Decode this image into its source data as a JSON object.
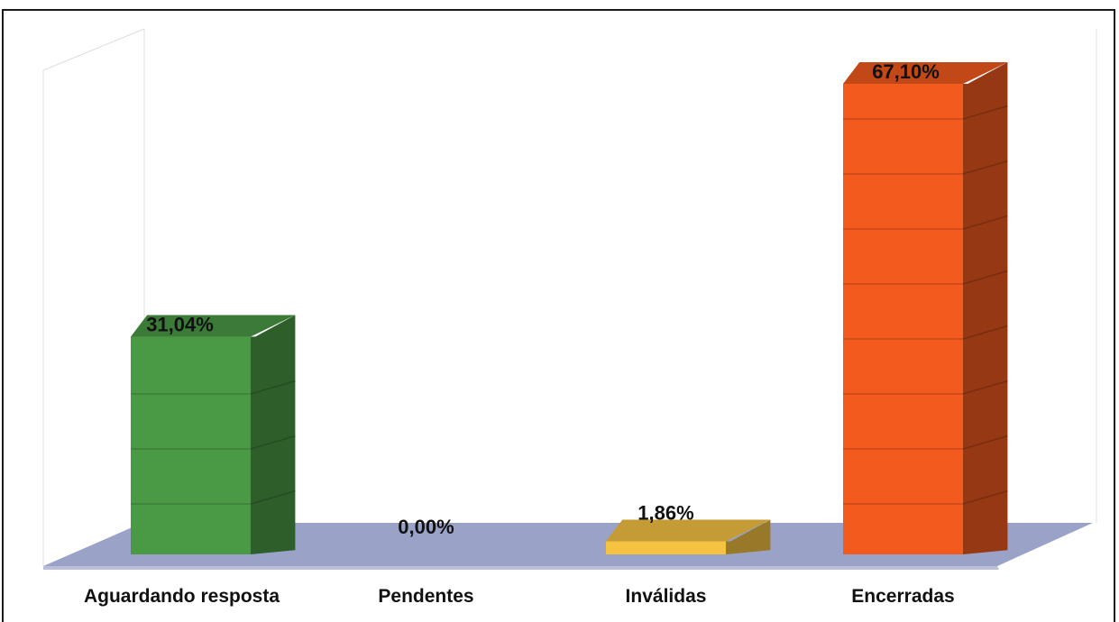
{
  "chart_data": {
    "type": "bar",
    "categories": [
      "Aguardando resposta",
      "Pendentes",
      "Inválidas",
      "Encerradas"
    ],
    "values": [
      31.04,
      0.0,
      1.86,
      67.1
    ],
    "data_labels": [
      "31,04%",
      "0,00%",
      "1,86%",
      "67,10%"
    ],
    "colors": [
      "#4a9a45",
      "#4a9a45",
      "#f5c242",
      "#f25a1e"
    ],
    "ylim": [
      0,
      70
    ],
    "title": "",
    "xlabel": "",
    "ylabel": "",
    "grid": true,
    "legend": false,
    "style": "3d-column"
  }
}
